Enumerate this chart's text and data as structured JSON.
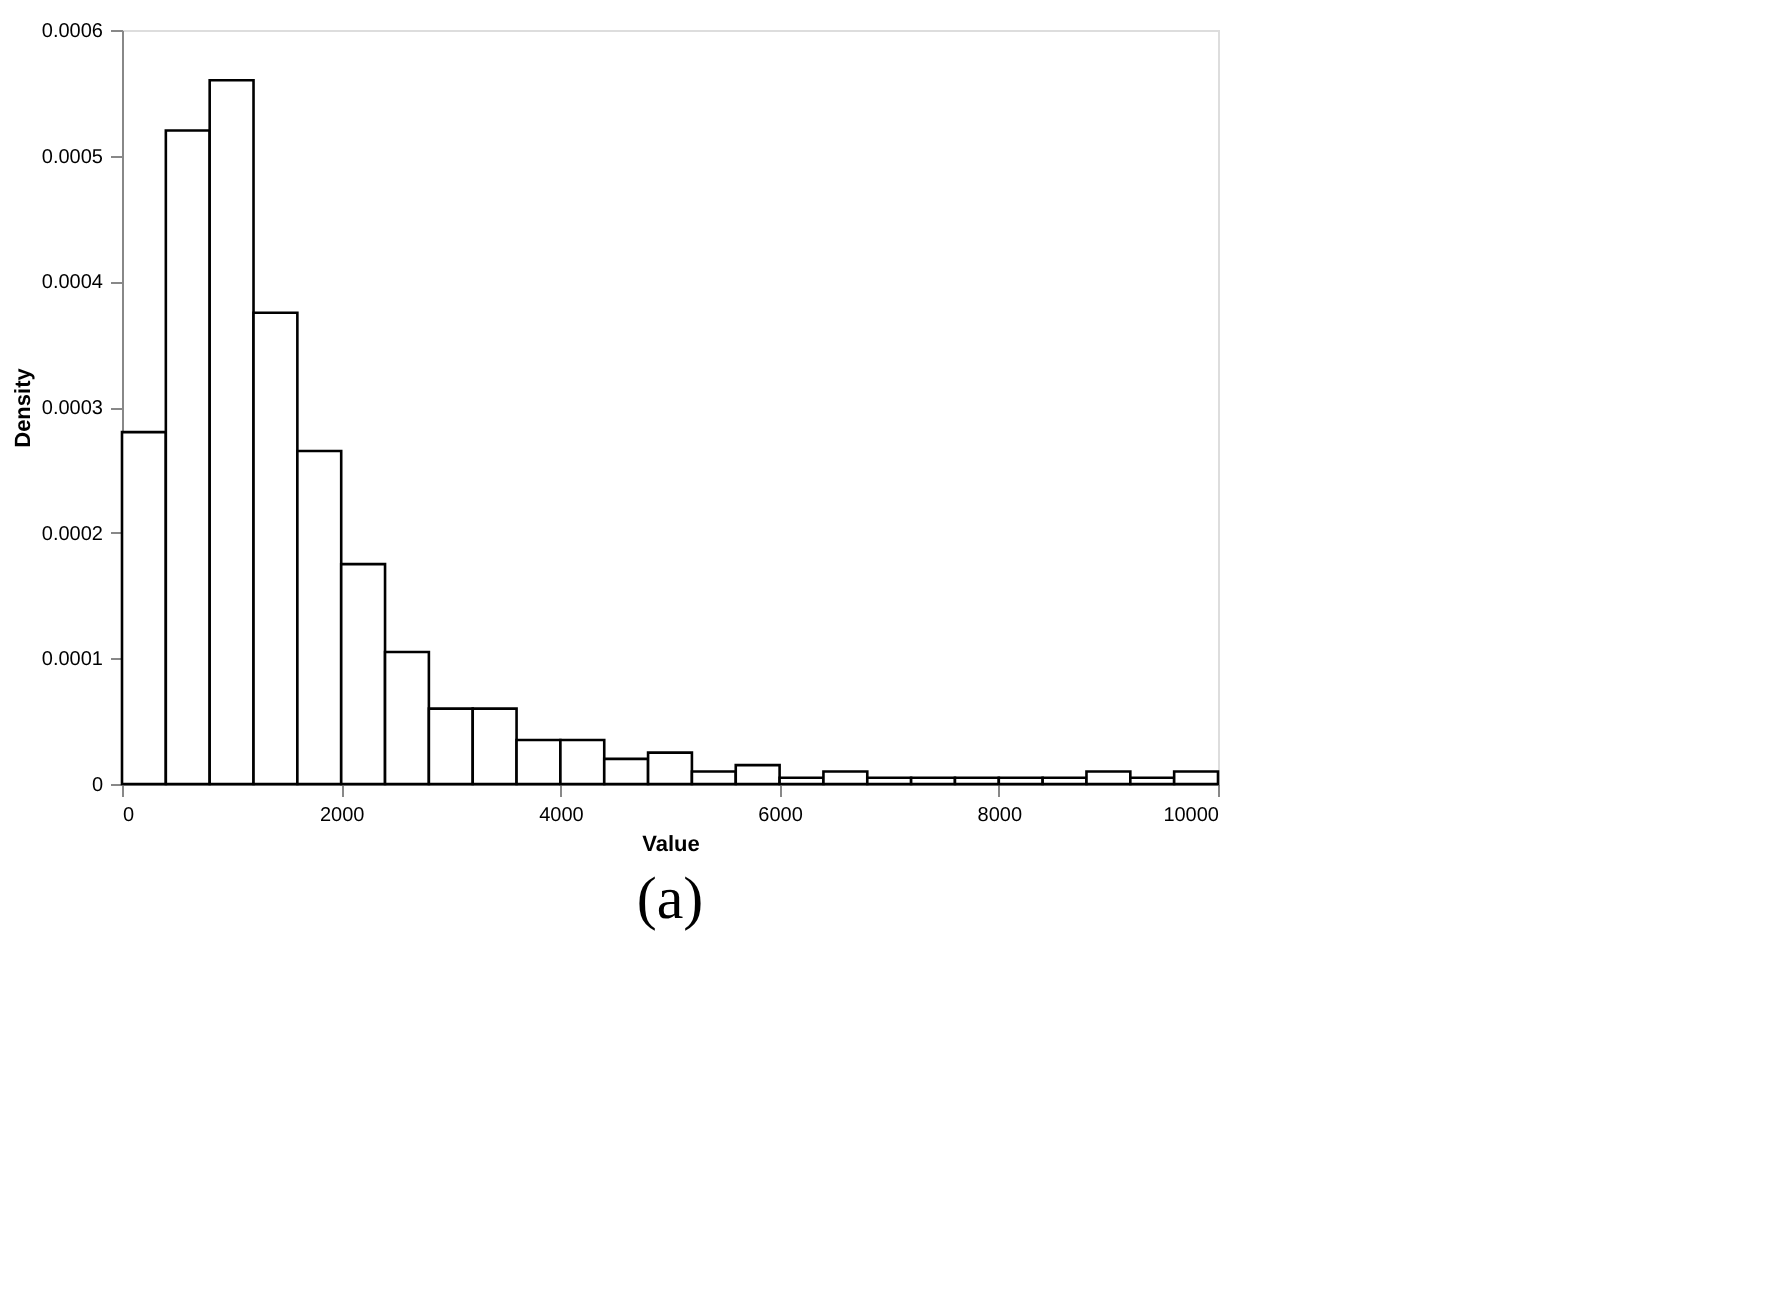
{
  "chart_data": {
    "type": "histogram",
    "bins": [
      0,
      400,
      800,
      1200,
      1600,
      2000,
      2400,
      2800,
      3200,
      3600,
      4000,
      4400,
      4800,
      5200,
      5600,
      6000,
      6400,
      6800,
      7200,
      7600,
      8000,
      8400,
      8800,
      9200,
      9600,
      10000
    ],
    "values": [
      0.00028,
      0.00052,
      0.00056,
      0.000375,
      0.000265,
      0.000175,
      0.000105,
      6e-05,
      6e-05,
      3.5e-05,
      3.5e-05,
      2e-05,
      2.5e-05,
      1e-05,
      1.5e-05,
      5e-06,
      1e-05,
      5e-06,
      5e-06,
      5e-06,
      5e-06,
      5e-06,
      1e-05,
      5e-06,
      1e-05
    ],
    "color": "#ffffff",
    "xlabel": "Value",
    "ylabel": "Density",
    "xlim": [
      0,
      10000
    ],
    "xticks": [
      0,
      2000,
      4000,
      6000,
      8000,
      10000
    ],
    "ylim": [
      0,
      0.0006
    ],
    "yticks": [
      0,
      0.0001,
      0.0002,
      0.0003,
      0.0004,
      0.0005,
      0.0006
    ],
    "grid": false,
    "annotations": [
      "(a)"
    ]
  }
}
